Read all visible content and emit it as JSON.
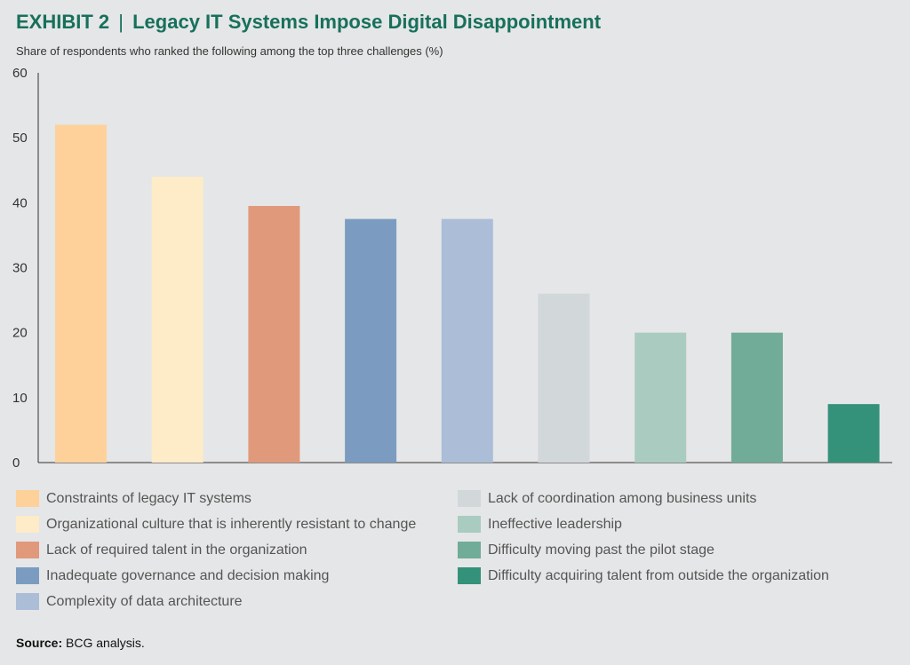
{
  "header": {
    "exhibit": "EXHIBIT 2",
    "separator": "|",
    "title": "Legacy IT Systems Impose Digital Disappointment",
    "subtitle": "Share of respondents who ranked the following among the top three challenges (%)"
  },
  "chart_data": {
    "type": "bar",
    "title": "Legacy IT Systems Impose Digital Disappointment",
    "ylabel": "",
    "xlabel": "",
    "ylim": [
      0,
      60
    ],
    "yticks": [
      0,
      10,
      20,
      30,
      40,
      50,
      60
    ],
    "grid": false,
    "legend_position": "bottom",
    "categories": [
      "Constraints of legacy IT systems",
      "Organizational culture that is inherently resistant to change",
      "Lack of required talent in the organization",
      "Inadequate governance and decision making",
      "Complexity of data architecture",
      "Lack of coordination among business units",
      "Ineffective leadership",
      "Difficulty moving past the pilot stage",
      "Difficulty acquiring talent from outside the organization"
    ],
    "values": [
      52,
      44,
      39.5,
      37.5,
      37.5,
      26,
      20,
      20,
      9
    ],
    "colors": [
      "#fdd199",
      "#feebc8",
      "#e0997b",
      "#7b9cc0",
      "#abbdd7",
      "#d2d7da",
      "#aacbc0",
      "#70ac98",
      "#34917a"
    ]
  },
  "source": {
    "label": "Source:",
    "text": " BCG analysis."
  }
}
